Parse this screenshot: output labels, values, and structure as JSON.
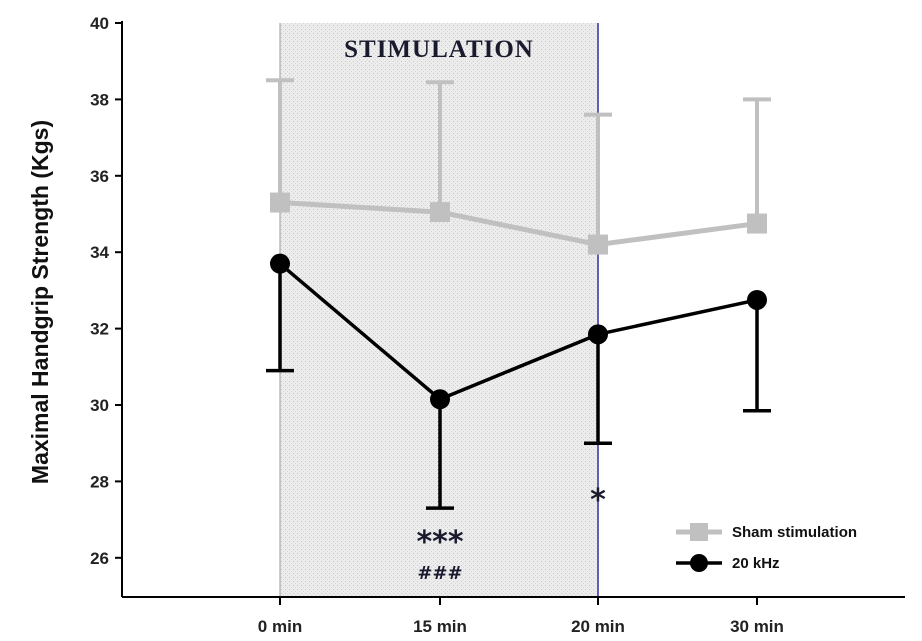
{
  "chart_data": {
    "type": "line",
    "ylabel": "Maximal Handgrip Strength (Kgs)",
    "xlabel": "",
    "categories": [
      "0 min",
      "15 min",
      "20 min",
      "30 min"
    ],
    "ylim": [
      25,
      40
    ],
    "yticks": [
      26,
      28,
      30,
      32,
      34,
      36,
      38,
      40
    ],
    "shaded_region": {
      "from": "0 min",
      "to": "20 min",
      "label": "STIMULATION"
    },
    "series": [
      {
        "name": "Sham stimulation",
        "color": "#c0c0c0",
        "marker": "square",
        "values": [
          35.3,
          35.05,
          34.2,
          34.75
        ],
        "error_plus": [
          3.2,
          3.4,
          3.4,
          3.25
        ],
        "error_minus": [
          0,
          0,
          0,
          0
        ]
      },
      {
        "name": "20 kHz",
        "color": "#000000",
        "marker": "circle",
        "values": [
          33.7,
          30.15,
          31.85,
          32.75
        ],
        "error_plus": [
          0,
          0,
          0,
          0
        ],
        "error_minus": [
          2.8,
          2.85,
          2.85,
          2.9
        ]
      }
    ],
    "annotations": [
      {
        "category": "15 min",
        "stars": "***",
        "hashes": "###"
      },
      {
        "category": "20 min",
        "stars": "*",
        "hashes": ""
      }
    ],
    "legend_position": "bottom-right"
  }
}
